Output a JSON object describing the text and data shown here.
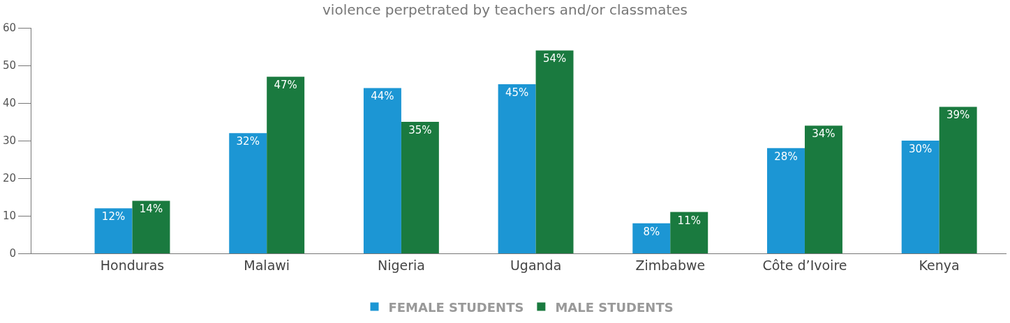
{
  "chart_data": {
    "type": "bar",
    "title": "violence perpetrated by teachers and/or classmates",
    "categories": [
      "Honduras",
      "Malawi",
      "Nigeria",
      "Uganda",
      "Zimbabwe",
      "Côte d’Ivoire",
      "Kenya"
    ],
    "series": [
      {
        "name": "FEMALE STUDENTS",
        "color": "#1c96d4",
        "values": [
          12,
          32,
          44,
          45,
          8,
          28,
          30
        ],
        "value_labels": [
          "12%",
          "32%",
          "44%",
          "45%",
          "8%",
          "28%",
          "30%"
        ]
      },
      {
        "name": "MALE STUDENTS",
        "color": "#1a7a3f",
        "values": [
          14,
          47,
          35,
          54,
          11,
          34,
          39
        ],
        "value_labels": [
          "14%",
          "47%",
          "35%",
          "54%",
          "11%",
          "34%",
          "39%"
        ]
      }
    ],
    "ylim": [
      0,
      60
    ],
    "yticks": [
      0,
      10,
      20,
      30,
      40,
      50,
      60
    ],
    "legend": "bottom"
  }
}
